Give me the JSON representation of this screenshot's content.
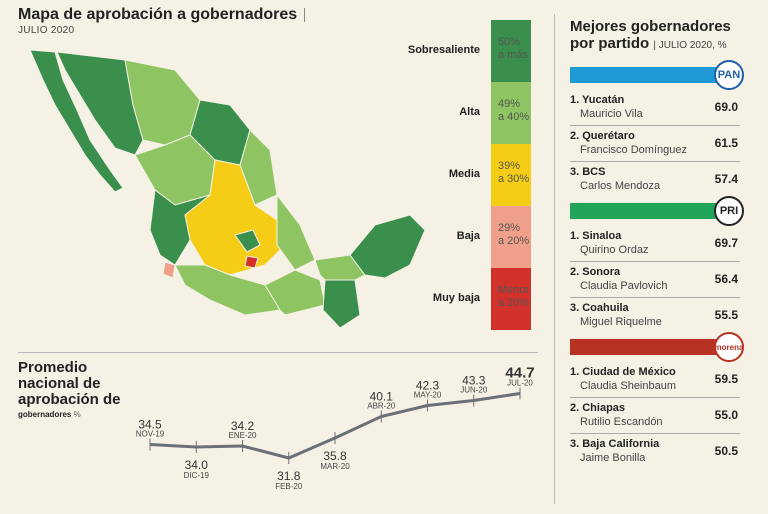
{
  "map": {
    "title": "Mapa de aprobación a gobernadores",
    "subtitle": "JULIO 2020",
    "legend": [
      {
        "label": "Sobresaliente",
        "range1": "50%",
        "range2": "a más",
        "color": "#3a8f4d"
      },
      {
        "label": "Alta",
        "range1": "49%",
        "range2": "a 40%",
        "color": "#8ec562"
      },
      {
        "label": "Media",
        "range1": "39%",
        "range2": "a 30%",
        "color": "#f6cd16"
      },
      {
        "label": "Baja",
        "range1": "29%",
        "range2": "a 20%",
        "color": "#f0a08a"
      },
      {
        "label": "Muy baja",
        "range1": "Menor",
        "range2": "a 20%",
        "color": "#d1312a"
      }
    ]
  },
  "trend": {
    "title_l1": "Promedio",
    "title_l2": "nacional de",
    "title_l3": "aprobación de",
    "title_l4": "gobernadores",
    "unit": "%"
  },
  "chart_data": {
    "type": "line",
    "title": "Promedio nacional de aprobación de gobernadores",
    "ylabel": "%",
    "categories": [
      "NOV-19",
      "DIC-19",
      "ENE-20",
      "FEB-20",
      "MAR-20",
      "ABR-20",
      "MAY-20",
      "JUN-20",
      "JUL-20"
    ],
    "values": [
      34.5,
      34.0,
      34.2,
      31.8,
      35.8,
      40.1,
      42.3,
      43.3,
      44.7
    ],
    "labels": [
      "34.5",
      "34.0",
      "34.2",
      "31.8",
      "35.8",
      "40.1",
      "42.3",
      "43.3",
      "44.7"
    ],
    "ylim": [
      31,
      45
    ]
  },
  "best": {
    "title_l1": "Mejores gobernadores",
    "title_l2": "por partido",
    "subtitle": "JULIO 2020, %",
    "parties": [
      {
        "logo": "PAN",
        "color": "#1f9ad6",
        "logo_color": "#1f5fa8",
        "rows": [
          {
            "rank": "1. Yucatán",
            "name": "Mauricio Vila",
            "score": "69.0"
          },
          {
            "rank": "2. Querétaro",
            "name": "Francisco Domínguez",
            "score": "61.5"
          },
          {
            "rank": "3. BCS",
            "name": "Carlos Mendoza",
            "score": "57.4"
          }
        ]
      },
      {
        "logo": "PRI",
        "color": "#20a45a",
        "logo_color": "#222",
        "rows": [
          {
            "rank": "1. Sinaloa",
            "name": "Quirino Ordaz",
            "score": "69.7"
          },
          {
            "rank": "2. Sonora",
            "name": "Claudia Pavlovich",
            "score": "56.4"
          },
          {
            "rank": "3. Coahuila",
            "name": "Miguel Riquelme",
            "score": "55.5"
          }
        ]
      },
      {
        "logo": "morena",
        "color": "#b83224",
        "logo_color": "#b83224",
        "rows": [
          {
            "rank": "1. Ciudad de México",
            "name": "Claudia Sheinbaum",
            "score": "59.5"
          },
          {
            "rank": "2. Chiapas",
            "name": "Rutilio Escandón",
            "score": "55.0"
          },
          {
            "rank": "3. Baja California",
            "name": "Jaime Bonilla",
            "score": "50.5"
          }
        ]
      }
    ]
  }
}
